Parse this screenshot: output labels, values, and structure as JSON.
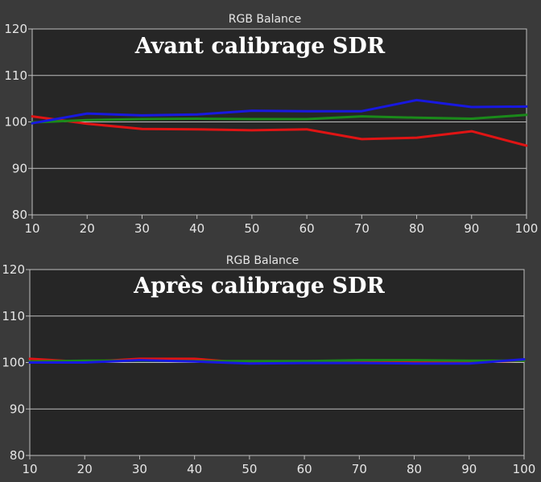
{
  "chart_data": [
    {
      "type": "line",
      "title": "RGB Balance",
      "annotation": "Avant calibrage SDR",
      "xlabel": "",
      "ylabel": "",
      "xlim": [
        10,
        100
      ],
      "ylim": [
        80,
        120
      ],
      "x_ticks": [
        10,
        20,
        30,
        40,
        50,
        60,
        70,
        80,
        90,
        100
      ],
      "y_ticks": [
        80,
        90,
        100,
        110,
        120
      ],
      "grid": true,
      "x": [
        10,
        20,
        30,
        40,
        50,
        60,
        70,
        80,
        90,
        100
      ],
      "series": [
        {
          "color": "#e01414",
          "values": [
            101.2,
            99.6,
            98.5,
            98.4,
            98.2,
            98.4,
            96.3,
            96.6,
            98.0,
            94.9
          ]
        },
        {
          "color": "#1a8a1a",
          "values": [
            99.9,
            100.4,
            100.6,
            100.7,
            100.6,
            100.6,
            101.2,
            100.9,
            100.7,
            101.5
          ]
        },
        {
          "color": "#1818e0",
          "values": [
            99.7,
            101.8,
            101.4,
            101.6,
            102.4,
            102.3,
            102.3,
            104.7,
            103.2,
            103.3
          ]
        }
      ]
    },
    {
      "type": "line",
      "title": "RGB Balance",
      "annotation": "Après calibrage SDR",
      "xlabel": "",
      "ylabel": "",
      "xlim": [
        10,
        100
      ],
      "ylim": [
        80,
        120
      ],
      "x_ticks": [
        10,
        20,
        30,
        40,
        50,
        60,
        70,
        80,
        90,
        100
      ],
      "y_ticks": [
        80,
        90,
        100,
        110,
        120
      ],
      "grid": true,
      "x": [
        10,
        20,
        30,
        40,
        50,
        60,
        70,
        80,
        90,
        100
      ],
      "series": [
        {
          "color": "#e01414",
          "values": [
            100.8,
            100.1,
            100.8,
            100.8,
            99.9,
            100.0,
            100.2,
            100.2,
            100.1,
            100.4
          ]
        },
        {
          "color": "#1a8a1a",
          "values": [
            100.2,
            100.4,
            100.4,
            100.3,
            100.3,
            100.3,
            100.5,
            100.5,
            100.4,
            100.4
          ]
        },
        {
          "color": "#1818e0",
          "values": [
            100.0,
            100.0,
            100.5,
            100.2,
            99.8,
            99.9,
            99.9,
            99.8,
            99.8,
            100.7
          ]
        }
      ]
    }
  ]
}
